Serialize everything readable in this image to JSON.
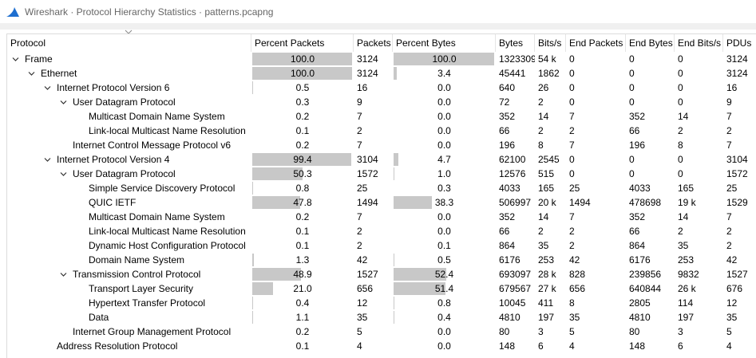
{
  "window": {
    "title": "Wireshark · Protocol Hierarchy Statistics · patterns.pcapng",
    "icon": "wireshark-fin-icon",
    "accent_color": "#1e6fd0"
  },
  "columns": [
    {
      "key": "protocol",
      "label": "Protocol"
    },
    {
      "key": "pct_packets",
      "label": "Percent Packets"
    },
    {
      "key": "packets",
      "label": "Packets"
    },
    {
      "key": "pct_bytes",
      "label": "Percent Bytes"
    },
    {
      "key": "bytes",
      "label": "Bytes"
    },
    {
      "key": "bits_s",
      "label": "Bits/s"
    },
    {
      "key": "end_packets",
      "label": "End Packets"
    },
    {
      "key": "end_bytes",
      "label": "End Bytes"
    },
    {
      "key": "end_bits_s",
      "label": "End Bits/s"
    },
    {
      "key": "pdus",
      "label": "PDUs"
    }
  ],
  "rows": [
    {
      "name": "Frame",
      "level": 0,
      "expandable": true,
      "pct_packets": "100.0",
      "packets": "3124",
      "pct_bytes": "100.0",
      "bytes": "1323309",
      "bits_s": "54 k",
      "end_packets": "0",
      "end_bytes": "0",
      "end_bits_s": "0",
      "pdus": "3124"
    },
    {
      "name": "Ethernet",
      "level": 1,
      "expandable": true,
      "pct_packets": "100.0",
      "packets": "3124",
      "pct_bytes": "3.4",
      "bytes": "45441",
      "bits_s": "1862",
      "end_packets": "0",
      "end_bytes": "0",
      "end_bits_s": "0",
      "pdus": "3124"
    },
    {
      "name": "Internet Protocol Version 6",
      "level": 2,
      "expandable": true,
      "pct_packets": "0.5",
      "packets": "16",
      "pct_bytes": "0.0",
      "bytes": "640",
      "bits_s": "26",
      "end_packets": "0",
      "end_bytes": "0",
      "end_bits_s": "0",
      "pdus": "16"
    },
    {
      "name": "User Datagram Protocol",
      "level": 3,
      "expandable": true,
      "pct_packets": "0.3",
      "packets": "9",
      "pct_bytes": "0.0",
      "bytes": "72",
      "bits_s": "2",
      "end_packets": "0",
      "end_bytes": "0",
      "end_bits_s": "0",
      "pdus": "9"
    },
    {
      "name": "Multicast Domain Name System",
      "level": 4,
      "expandable": false,
      "pct_packets": "0.2",
      "packets": "7",
      "pct_bytes": "0.0",
      "bytes": "352",
      "bits_s": "14",
      "end_packets": "7",
      "end_bytes": "352",
      "end_bits_s": "14",
      "pdus": "7"
    },
    {
      "name": "Link-local Multicast Name Resolution",
      "level": 4,
      "expandable": false,
      "pct_packets": "0.1",
      "packets": "2",
      "pct_bytes": "0.0",
      "bytes": "66",
      "bits_s": "2",
      "end_packets": "2",
      "end_bytes": "66",
      "end_bits_s": "2",
      "pdus": "2"
    },
    {
      "name": "Internet Control Message Protocol v6",
      "level": 3,
      "expandable": false,
      "pct_packets": "0.2",
      "packets": "7",
      "pct_bytes": "0.0",
      "bytes": "196",
      "bits_s": "8",
      "end_packets": "7",
      "end_bytes": "196",
      "end_bits_s": "8",
      "pdus": "7"
    },
    {
      "name": "Internet Protocol Version 4",
      "level": 2,
      "expandable": true,
      "pct_packets": "99.4",
      "packets": "3104",
      "pct_bytes": "4.7",
      "bytes": "62100",
      "bits_s": "2545",
      "end_packets": "0",
      "end_bytes": "0",
      "end_bits_s": "0",
      "pdus": "3104"
    },
    {
      "name": "User Datagram Protocol",
      "level": 3,
      "expandable": true,
      "pct_packets": "50.3",
      "packets": "1572",
      "pct_bytes": "1.0",
      "bytes": "12576",
      "bits_s": "515",
      "end_packets": "0",
      "end_bytes": "0",
      "end_bits_s": "0",
      "pdus": "1572"
    },
    {
      "name": "Simple Service Discovery Protocol",
      "level": 4,
      "expandable": false,
      "pct_packets": "0.8",
      "packets": "25",
      "pct_bytes": "0.3",
      "bytes": "4033",
      "bits_s": "165",
      "end_packets": "25",
      "end_bytes": "4033",
      "end_bits_s": "165",
      "pdus": "25"
    },
    {
      "name": "QUIC IETF",
      "level": 4,
      "expandable": false,
      "pct_packets": "47.8",
      "packets": "1494",
      "pct_bytes": "38.3",
      "bytes": "506997",
      "bits_s": "20 k",
      "end_packets": "1494",
      "end_bytes": "478698",
      "end_bits_s": "19 k",
      "pdus": "1529"
    },
    {
      "name": "Multicast Domain Name System",
      "level": 4,
      "expandable": false,
      "pct_packets": "0.2",
      "packets": "7",
      "pct_bytes": "0.0",
      "bytes": "352",
      "bits_s": "14",
      "end_packets": "7",
      "end_bytes": "352",
      "end_bits_s": "14",
      "pdus": "7"
    },
    {
      "name": "Link-local Multicast Name Resolution",
      "level": 4,
      "expandable": false,
      "pct_packets": "0.1",
      "packets": "2",
      "pct_bytes": "0.0",
      "bytes": "66",
      "bits_s": "2",
      "end_packets": "2",
      "end_bytes": "66",
      "end_bits_s": "2",
      "pdus": "2"
    },
    {
      "name": "Dynamic Host Configuration Protocol",
      "level": 4,
      "expandable": false,
      "pct_packets": "0.1",
      "packets": "2",
      "pct_bytes": "0.1",
      "bytes": "864",
      "bits_s": "35",
      "end_packets": "2",
      "end_bytes": "864",
      "end_bits_s": "35",
      "pdus": "2"
    },
    {
      "name": "Domain Name System",
      "level": 4,
      "expandable": false,
      "pct_packets": "1.3",
      "packets": "42",
      "pct_bytes": "0.5",
      "bytes": "6176",
      "bits_s": "253",
      "end_packets": "42",
      "end_bytes": "6176",
      "end_bits_s": "253",
      "pdus": "42"
    },
    {
      "name": "Transmission Control Protocol",
      "level": 3,
      "expandable": true,
      "pct_packets": "48.9",
      "packets": "1527",
      "pct_bytes": "52.4",
      "bytes": "693097",
      "bits_s": "28 k",
      "end_packets": "828",
      "end_bytes": "239856",
      "end_bits_s": "9832",
      "pdus": "1527"
    },
    {
      "name": "Transport Layer Security",
      "level": 4,
      "expandable": false,
      "pct_packets": "21.0",
      "packets": "656",
      "pct_bytes": "51.4",
      "bytes": "679567",
      "bits_s": "27 k",
      "end_packets": "656",
      "end_bytes": "640844",
      "end_bits_s": "26 k",
      "pdus": "676"
    },
    {
      "name": "Hypertext Transfer Protocol",
      "level": 4,
      "expandable": false,
      "pct_packets": "0.4",
      "packets": "12",
      "pct_bytes": "0.8",
      "bytes": "10045",
      "bits_s": "411",
      "end_packets": "8",
      "end_bytes": "2805",
      "end_bits_s": "114",
      "pdus": "12"
    },
    {
      "name": "Data",
      "level": 4,
      "expandable": false,
      "pct_packets": "1.1",
      "packets": "35",
      "pct_bytes": "0.4",
      "bytes": "4810",
      "bits_s": "197",
      "end_packets": "35",
      "end_bytes": "4810",
      "end_bits_s": "197",
      "pdus": "35"
    },
    {
      "name": "Internet Group Management Protocol",
      "level": 3,
      "expandable": false,
      "pct_packets": "0.2",
      "packets": "5",
      "pct_bytes": "0.0",
      "bytes": "80",
      "bits_s": "3",
      "end_packets": "5",
      "end_bytes": "80",
      "end_bits_s": "3",
      "pdus": "5"
    },
    {
      "name": "Address Resolution Protocol",
      "level": 2,
      "expandable": false,
      "pct_packets": "0.1",
      "packets": "4",
      "pct_bytes": "0.0",
      "bytes": "148",
      "bits_s": "6",
      "end_packets": "4",
      "end_bytes": "148",
      "end_bits_s": "6",
      "pdus": "4"
    }
  ]
}
